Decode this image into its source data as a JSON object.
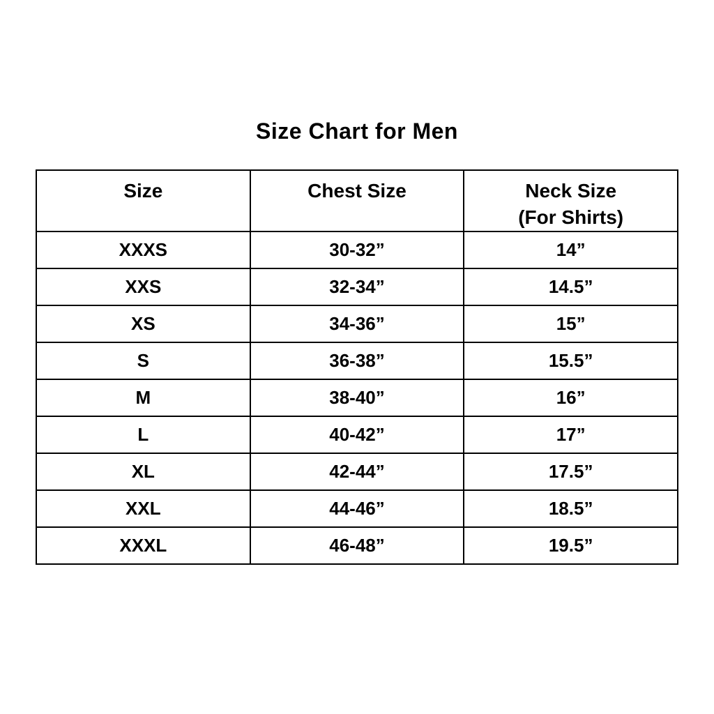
{
  "title": "Size Chart for Men",
  "colors": {
    "background": "#ffffff",
    "text": "#000000",
    "border": "#000000"
  },
  "table": {
    "headers": [
      {
        "label": "Size",
        "sublabel": ""
      },
      {
        "label": "Chest Size",
        "sublabel": ""
      },
      {
        "label": "Neck Size",
        "sublabel": "(For Shirts)"
      }
    ],
    "rows": [
      [
        "XXXS",
        "30-32”",
        "14”"
      ],
      [
        "XXS",
        "32-34”",
        "14.5”"
      ],
      [
        "XS",
        "34-36”",
        "15”"
      ],
      [
        "S",
        "36-38”",
        "15.5”"
      ],
      [
        "M",
        "38-40”",
        "16”"
      ],
      [
        "L",
        "40-42”",
        "17”"
      ],
      [
        "XL",
        "42-44”",
        "17.5”"
      ],
      [
        "XXL",
        "44-46”",
        "18.5”"
      ],
      [
        "XXXL",
        "46-48”",
        "19.5”"
      ]
    ]
  },
  "chart_data": {
    "type": "table",
    "title": "Size Chart for Men",
    "columns": [
      "Size",
      "Chest Size",
      "Neck Size (For Shirts)"
    ],
    "rows": [
      [
        "XXXS",
        "30-32”",
        "14”"
      ],
      [
        "XXS",
        "32-34”",
        "14.5”"
      ],
      [
        "XS",
        "34-36”",
        "15”"
      ],
      [
        "S",
        "36-38”",
        "15.5”"
      ],
      [
        "M",
        "38-40”",
        "16”"
      ],
      [
        "L",
        "40-42”",
        "17”"
      ],
      [
        "XL",
        "42-44”",
        "17.5”"
      ],
      [
        "XXL",
        "44-46”",
        "18.5”"
      ],
      [
        "XXXL",
        "46-48”",
        "19.5”"
      ]
    ],
    "legend": false,
    "grid": true
  }
}
